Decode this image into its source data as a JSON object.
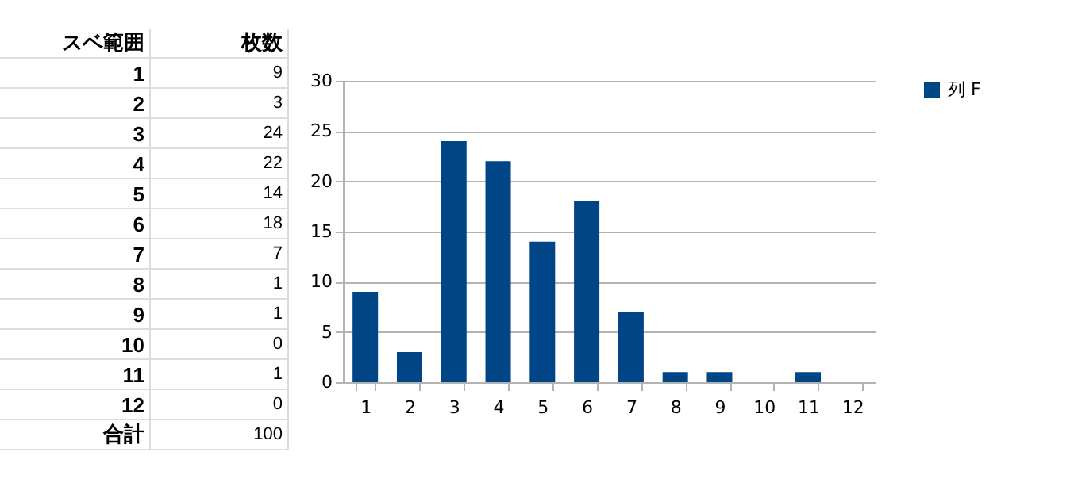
{
  "chart_data": {
    "type": "bar",
    "categories": [
      "1",
      "2",
      "3",
      "4",
      "5",
      "6",
      "7",
      "8",
      "9",
      "10",
      "11",
      "12"
    ],
    "series": [
      {
        "name": "列 F",
        "color": "#004586",
        "values": [
          9,
          3,
          24,
          22,
          14,
          18,
          7,
          1,
          1,
          0,
          1,
          0
        ]
      }
    ],
    "ylim": [
      0,
      30
    ],
    "yticks": [
      0,
      5,
      10,
      15,
      20,
      25,
      30
    ],
    "grid": "y",
    "legend": "right",
    "annotations": [
      "スベ範囲",
      "枚数",
      "9",
      "3",
      "24",
      "22",
      "14",
      "18",
      "7",
      "1",
      "1",
      "0",
      "1",
      "0",
      "合計",
      "100"
    ]
  }
}
